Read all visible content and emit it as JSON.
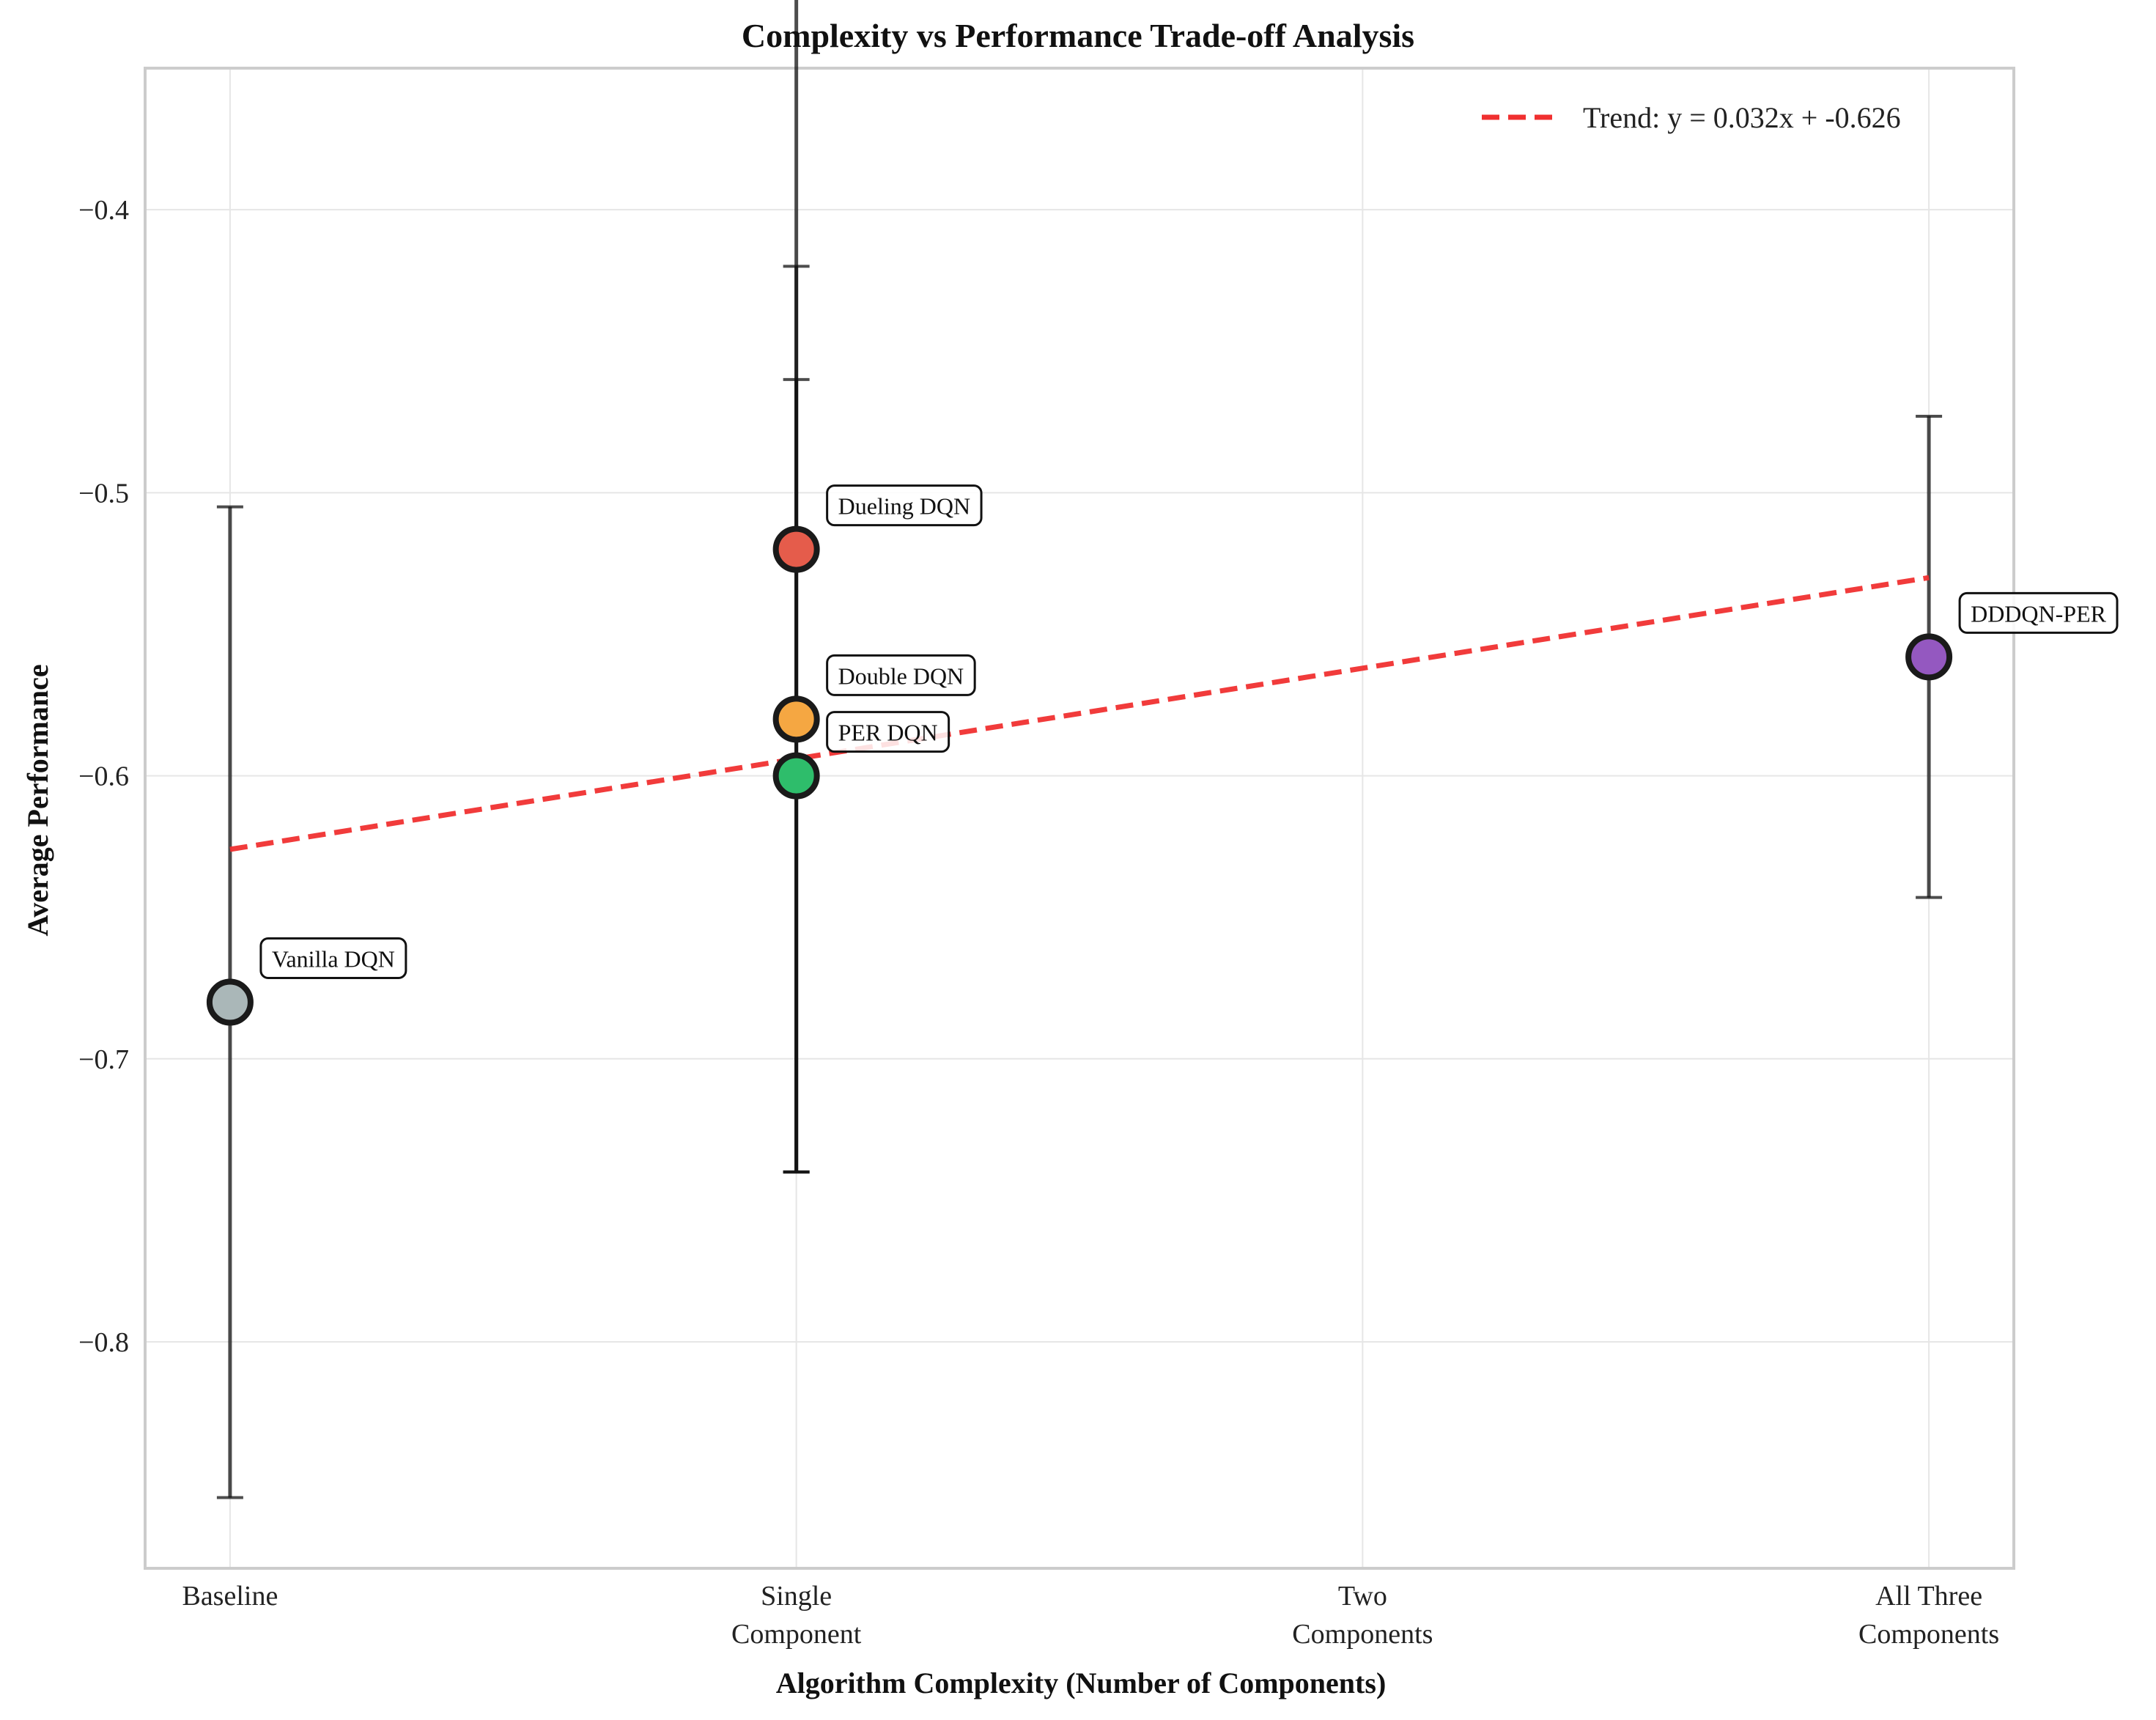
{
  "chart_data": {
    "type": "scatter",
    "title": "Complexity vs Performance Trade-off Analysis",
    "xlabel": "Algorithm Complexity (Number of Components)",
    "ylabel": "Average Performance",
    "xlim": [
      -0.15,
      3.15
    ],
    "ylim": [
      -0.88,
      -0.35
    ],
    "x_ticks": [
      0,
      1,
      2,
      3
    ],
    "x_tick_labels": [
      "Baseline",
      "Single\nComponent",
      "Two\nComponents",
      "All Three\nComponents"
    ],
    "y_ticks": [
      -0.8,
      -0.7,
      -0.6,
      -0.5,
      -0.4
    ],
    "y_tick_labels": [
      "−0.8",
      "−0.7",
      "−0.6",
      "−0.5",
      "−0.4"
    ],
    "grid": true,
    "points": [
      {
        "label": "Vanilla DQN",
        "x": 0,
        "y": -0.68,
        "err": 0.175,
        "color": "#aab7b8"
      },
      {
        "label": "Double DQN",
        "x": 1,
        "y": -0.58,
        "err": 0.16,
        "color": "#f5a742"
      },
      {
        "label": "PER DQN",
        "x": 1,
        "y": -0.6,
        "err": 0.14,
        "color": "#2ebd6b"
      },
      {
        "label": "Dueling DQN",
        "x": 1,
        "y": -0.52,
        "err": 0.22,
        "color": "#e55c4b"
      },
      {
        "label": "DDDQN-PER",
        "x": 3,
        "y": -0.558,
        "err": 0.085,
        "color": "#9458c0"
      }
    ],
    "trend": {
      "slope": 0.032,
      "intercept": -0.626,
      "x_range": [
        0,
        3
      ],
      "color": "#f03030",
      "legend_label": "Trend: y = 0.032x + -0.626",
      "legend_position": "upper right"
    }
  }
}
